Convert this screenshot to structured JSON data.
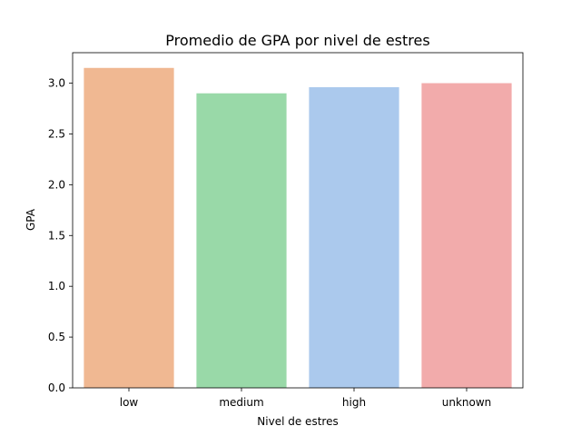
{
  "chart_data": {
    "type": "bar",
    "title": "Promedio de GPA por nivel de estres",
    "xlabel": "Nivel de estres",
    "ylabel": "GPA",
    "categories": [
      "low",
      "medium",
      "high",
      "unknown"
    ],
    "values": [
      3.15,
      2.9,
      2.96,
      3.0
    ],
    "colors": [
      "#f0b892",
      "#99d9a8",
      "#abc9ed",
      "#f2abab"
    ],
    "ylim": [
      0,
      3.3
    ],
    "yticks": [
      0.0,
      0.5,
      1.0,
      1.5,
      2.0,
      2.5,
      3.0
    ],
    "ytick_labels": [
      "0.0",
      "0.5",
      "1.0",
      "1.5",
      "2.0",
      "2.5",
      "3.0"
    ],
    "grid": false,
    "legend": "none"
  }
}
